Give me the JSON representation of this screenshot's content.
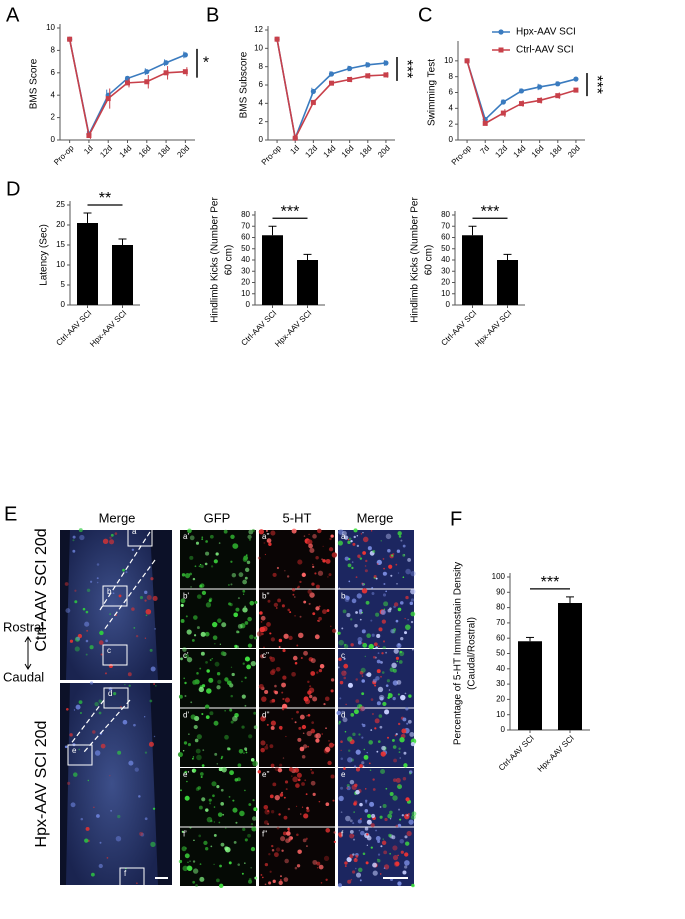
{
  "chart_data": [
    {
      "type": "line",
      "label": "A",
      "ylabel": "BMS Score",
      "categories": [
        "Pro-op",
        "1d",
        "12d",
        "14d",
        "16d",
        "18d",
        "20d"
      ],
      "series": [
        {
          "color": "#3a7bbf",
          "marker": "circle",
          "values": [
            9,
            0.5,
            4.0,
            5.5,
            6.1,
            6.9,
            7.6
          ],
          "errors": [
            0.1,
            0.3,
            0.5,
            0.2,
            0.3,
            0.3,
            0.3
          ]
        },
        {
          "color": "#c8404a",
          "marker": "square",
          "values": [
            9,
            0.4,
            3.7,
            5.1,
            5.2,
            6.0,
            6.1
          ],
          "errors": [
            0.1,
            0.3,
            0.9,
            0.4,
            0.6,
            0.6,
            0.4
          ]
        }
      ],
      "ylim": [
        0,
        10
      ],
      "yticks": [
        0,
        2,
        4,
        6,
        8,
        10
      ],
      "significance": "*"
    },
    {
      "type": "line",
      "label": "B",
      "ylabel": "BMS Subscore",
      "categories": [
        "Pro-op",
        "1d",
        "12d",
        "14d",
        "16d",
        "18d",
        "20d"
      ],
      "series": [
        {
          "color": "#3a7bbf",
          "marker": "circle",
          "values": [
            11,
            0.2,
            5.3,
            7.2,
            7.8,
            8.2,
            8.4
          ],
          "errors": [
            0.1,
            0.2,
            0.4,
            0.3,
            0.3,
            0.3,
            0.3
          ]
        },
        {
          "color": "#c8404a",
          "marker": "square",
          "values": [
            11,
            0.2,
            4.1,
            6.2,
            6.6,
            7.0,
            7.1
          ],
          "errors": [
            0.1,
            0.2,
            0.3,
            0.2,
            0.3,
            0.3,
            0.3
          ]
        }
      ],
      "ylim": [
        0,
        12
      ],
      "yticks": [
        0,
        2,
        4,
        6,
        8,
        10,
        12
      ],
      "significance": "***"
    },
    {
      "type": "line",
      "label": "C",
      "ylabel": "Swimming Test",
      "categories": [
        "Pro-op",
        "7d",
        "12d",
        "14d",
        "16d",
        "18d",
        "20d"
      ],
      "series": [
        {
          "name": "Hpx-AAV SCI",
          "color": "#3a7bbf",
          "marker": "circle",
          "values": [
            10,
            2.6,
            4.8,
            6.2,
            6.7,
            7.1,
            7.7
          ],
          "errors": [
            0.1,
            0.3,
            0.3,
            0.3,
            0.4,
            0.3,
            0.2
          ]
        },
        {
          "name": "Ctrl-AAV SCI",
          "color": "#c8404a",
          "marker": "square",
          "values": [
            10,
            2.1,
            3.4,
            4.6,
            5.0,
            5.6,
            6.3
          ],
          "errors": [
            0.1,
            0.3,
            0.5,
            0.4,
            0.4,
            0.4,
            0.3
          ]
        }
      ],
      "ylim": [
        0,
        12
      ],
      "yticks": [
        0,
        2,
        4,
        6,
        8,
        10
      ],
      "significance": "***",
      "legend": "top-right"
    },
    {
      "type": "bar",
      "label": "D",
      "ylabel": "Latency (Sec)",
      "categories": [
        "Ctrl-AAV SCI",
        "Hpx-AAV SCI"
      ],
      "values": [
        20.5,
        15
      ],
      "errors": [
        2.5,
        1.5
      ],
      "color": "#000000",
      "ylim": [
        0,
        25
      ],
      "yticks": [
        0,
        5,
        10,
        15,
        20,
        25
      ],
      "significance": "**"
    },
    {
      "type": "bar",
      "ylabel": [
        "Hindlimb Kicks (Number Per",
        "60 cm)"
      ],
      "categories": [
        "Ctrl-AAV SCI",
        "Hpx-AAV SCI"
      ],
      "values": [
        62,
        40
      ],
      "errors": [
        8,
        5
      ],
      "color": "#000000",
      "ylim": [
        0,
        80
      ],
      "yticks": [
        0,
        10,
        20,
        30,
        40,
        50,
        60,
        70,
        80
      ],
      "significance": "***"
    },
    {
      "type": "bar",
      "ylabel": [
        "Hindlimb Kicks (Number Per",
        "60 cm)"
      ],
      "categories": [
        "Ctrl-AAV SCI",
        "Hpx-AAV SCI"
      ],
      "values": [
        62,
        40
      ],
      "errors": [
        8,
        5
      ],
      "color": "#000000",
      "ylim": [
        0,
        80
      ],
      "yticks": [
        0,
        10,
        20,
        30,
        40,
        50,
        60,
        70,
        80
      ],
      "significance": "***"
    },
    {
      "type": "bar",
      "label": "F",
      "ylabel": [
        "Percentage of  5-HT Immunostain Density",
        "(Caudal/Rostral)"
      ],
      "categories": [
        "Ctrl-AAV SCI",
        "Hpx-AAV SCI"
      ],
      "values": [
        58,
        83
      ],
      "errors": [
        2.5,
        4
      ],
      "color": "#000000",
      "ylim": [
        0,
        100
      ],
      "yticks": [
        0,
        10,
        20,
        30,
        40,
        50,
        60,
        70,
        80,
        90,
        100
      ],
      "significance": "***"
    }
  ],
  "image_panel": {
    "label": "E",
    "column_headers": [
      "Merge",
      "GFP",
      "5-HT",
      "Merge"
    ],
    "row_labels": [
      "Ctrl-AAV SCI 20d",
      "Hpx-AAV SCI 20d"
    ],
    "direction": [
      "Rostral",
      "Caudal"
    ],
    "box_labels": [
      "a",
      "b",
      "c",
      "d",
      "e",
      "f"
    ],
    "tile_labels": [
      [
        "a'",
        "a''",
        "a"
      ],
      [
        "b'",
        "b''",
        "b"
      ],
      [
        "c'",
        "c''",
        "c"
      ],
      [
        "d'",
        "d''",
        "d"
      ],
      [
        "e'",
        "e''",
        "e"
      ],
      [
        "f'",
        "f''",
        "f"
      ]
    ]
  }
}
